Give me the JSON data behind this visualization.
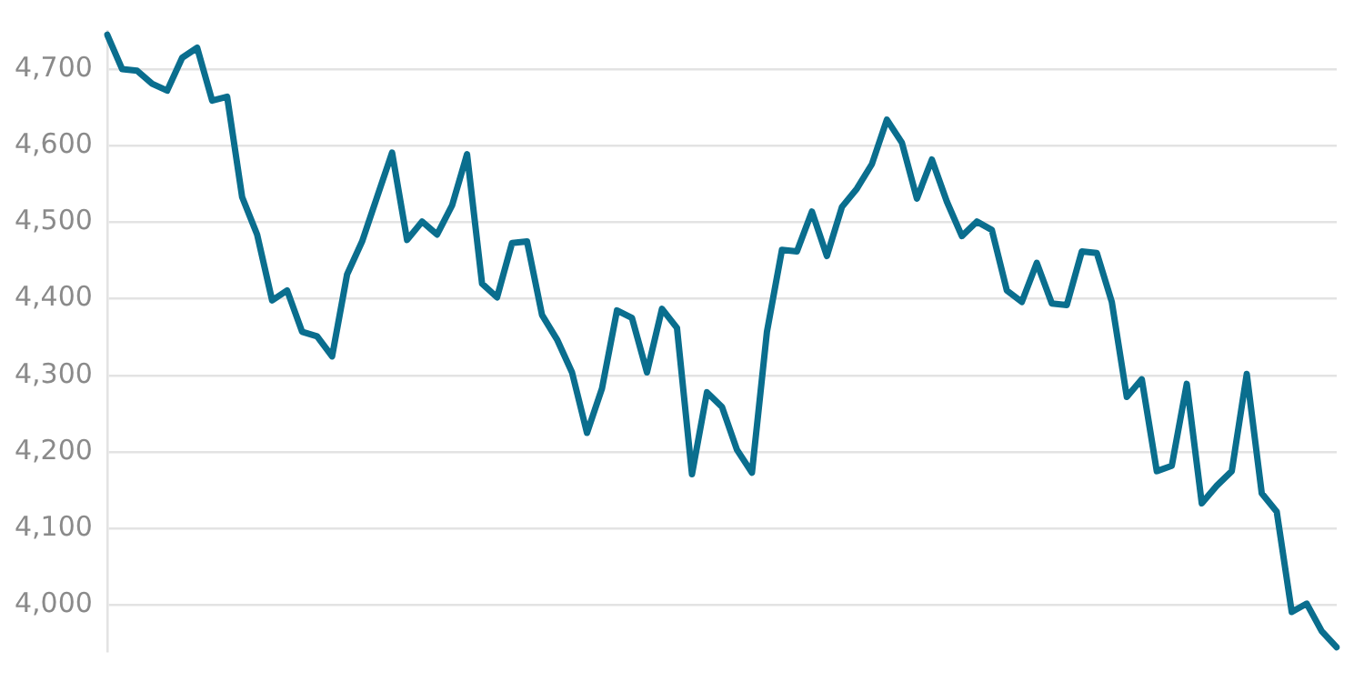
{
  "chart_data": {
    "type": "line",
    "categories": [
      null,
      null,
      null,
      null,
      null,
      null,
      null,
      null,
      null,
      null,
      null,
      null,
      null,
      null,
      null,
      null,
      null,
      null,
      null,
      null,
      null,
      null,
      null,
      null,
      null,
      null,
      null,
      null,
      null,
      null,
      null,
      null,
      null,
      null,
      null,
      null,
      null,
      null,
      null,
      null,
      null,
      null,
      null,
      null,
      null,
      null,
      null,
      null,
      null,
      null,
      null,
      null,
      null,
      null,
      null,
      null,
      null,
      null,
      null,
      null,
      null,
      null,
      null,
      null,
      null,
      null,
      null,
      null,
      null,
      null,
      null,
      null,
      null,
      null,
      null,
      null,
      null,
      null,
      null,
      null,
      null,
      null,
      null
    ],
    "series": [
      {
        "color": "#0a6e8e",
        "values": [
          4745,
          4700,
          4698,
          4681,
          4672,
          4715,
          4728,
          4659,
          4664,
          4533,
          4484,
          4398,
          4411,
          4357,
          4351,
          4325,
          4432,
          4475,
          4533,
          4591,
          4477,
          4501,
          4484,
          4522,
          4589,
          4420,
          4402,
          4473,
          4475,
          4379,
          4347,
          4304,
          4225,
          4283,
          4385,
          4375,
          4304,
          4387,
          4362,
          4171,
          4278,
          4259,
          4203,
          4173,
          4357,
          4464,
          4462,
          4514,
          4456,
          4520,
          4544,
          4576,
          4634,
          4604,
          4531,
          4582,
          4527,
          4482,
          4501,
          4490,
          4411,
          4396,
          4447,
          4394,
          4392,
          4462,
          4460,
          4396,
          4272,
          4295,
          4175,
          4182,
          4289,
          4133,
          4156,
          4175,
          4302,
          4146,
          4122,
          3991,
          4002,
          3966,
          3945
        ]
      }
    ],
    "ylim": [
      3940,
      4750
    ],
    "yticks": [
      {
        "value": 4000,
        "label": "4,000"
      },
      {
        "value": 4100,
        "label": "4,100"
      },
      {
        "value": 4200,
        "label": "4,200"
      },
      {
        "value": 4300,
        "label": "4,300"
      },
      {
        "value": 4400,
        "label": "4,400"
      },
      {
        "value": 4500,
        "label": "4,500"
      },
      {
        "value": 4600,
        "label": "4,600"
      },
      {
        "value": 4700,
        "label": "4,700"
      }
    ],
    "grid": "y",
    "legend": false,
    "marker": "none",
    "line_style": "solid",
    "tick_labels": "y"
  }
}
